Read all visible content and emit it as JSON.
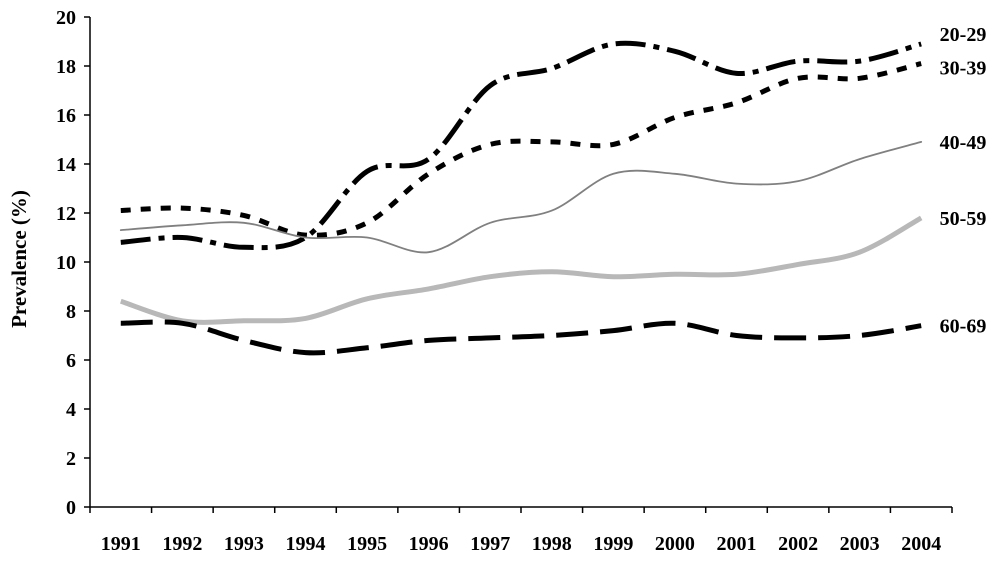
{
  "chart_data": {
    "type": "line",
    "title": "",
    "xlabel": "",
    "ylabel": "Prevalence (%)",
    "ylim": [
      0,
      20
    ],
    "yticks": [
      "0",
      "2",
      "4",
      "6",
      "8",
      "10",
      "12",
      "14",
      "16",
      "18",
      "20"
    ],
    "categories": [
      "1991",
      "1992",
      "1993",
      "1994",
      "1995",
      "1996",
      "1997",
      "1998",
      "1999",
      "2000",
      "2001",
      "2002",
      "2003",
      "2004"
    ],
    "grid": false,
    "legend": "labels at right end of lines",
    "series": [
      {
        "name": "20-29",
        "style": "dash-dot",
        "color": "#000000",
        "values": [
          10.8,
          11.0,
          10.6,
          11.0,
          13.7,
          14.2,
          17.2,
          17.9,
          18.9,
          18.6,
          17.7,
          18.2,
          18.2,
          18.9
        ]
      },
      {
        "name": "30-39",
        "style": "dotted",
        "color": "#000000",
        "values": [
          12.1,
          12.2,
          11.9,
          11.1,
          11.6,
          13.6,
          14.8,
          14.9,
          14.8,
          15.9,
          16.5,
          17.5,
          17.5,
          18.1
        ]
      },
      {
        "name": "40-49",
        "style": "thin solid",
        "color": "#808080",
        "values": [
          11.3,
          11.5,
          11.6,
          11.0,
          11.0,
          10.4,
          11.6,
          12.1,
          13.6,
          13.6,
          13.2,
          13.3,
          14.2,
          14.9
        ]
      },
      {
        "name": "50-59",
        "style": "thick light solid",
        "color": "#b8b8b8",
        "values": [
          8.4,
          7.6,
          7.6,
          7.7,
          8.5,
          8.9,
          9.4,
          9.6,
          9.4,
          9.5,
          9.5,
          9.9,
          10.4,
          11.8
        ]
      },
      {
        "name": "60-69",
        "style": "long dash",
        "color": "#000000",
        "values": [
          7.5,
          7.5,
          6.8,
          6.3,
          6.5,
          6.8,
          6.9,
          7.0,
          7.2,
          7.5,
          7.0,
          6.9,
          7.0,
          7.4
        ]
      }
    ]
  }
}
